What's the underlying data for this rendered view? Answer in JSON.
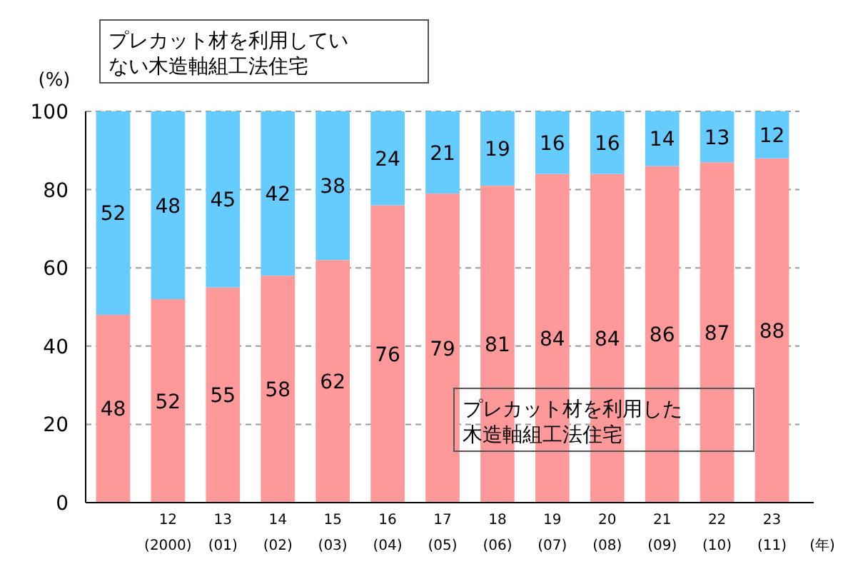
{
  "chart_data": {
    "type": "bar",
    "stacked": true,
    "ylabel": "(%)",
    "xlabel": "(年)",
    "categories": [
      null,
      "12\n(2000)",
      "13\n(01)",
      "14\n(02)",
      "15\n(03)",
      "16\n(04)",
      "17\n(05)",
      "18\n(06)",
      "19\n(07)",
      "20\n(08)",
      "21\n(09)",
      "22\n(10)",
      "23\n(11)"
    ],
    "series": [
      {
        "name": "プレカット材を利用した木造軸組工法住宅",
        "color": "#ff9999",
        "values": [
          48,
          52,
          55,
          58,
          62,
          76,
          79,
          81,
          84,
          84,
          86,
          87,
          88
        ]
      },
      {
        "name": "プレカット材を利用していない木造軸組工法住宅",
        "color": "#66ccff",
        "values": [
          52,
          48,
          45,
          42,
          38,
          24,
          21,
          19,
          16,
          16,
          14,
          13,
          12
        ]
      }
    ],
    "ylim": [
      0,
      100
    ],
    "yticks": [
      0,
      20,
      40,
      60,
      80,
      100
    ],
    "grid": "y",
    "data_labels": true
  }
}
